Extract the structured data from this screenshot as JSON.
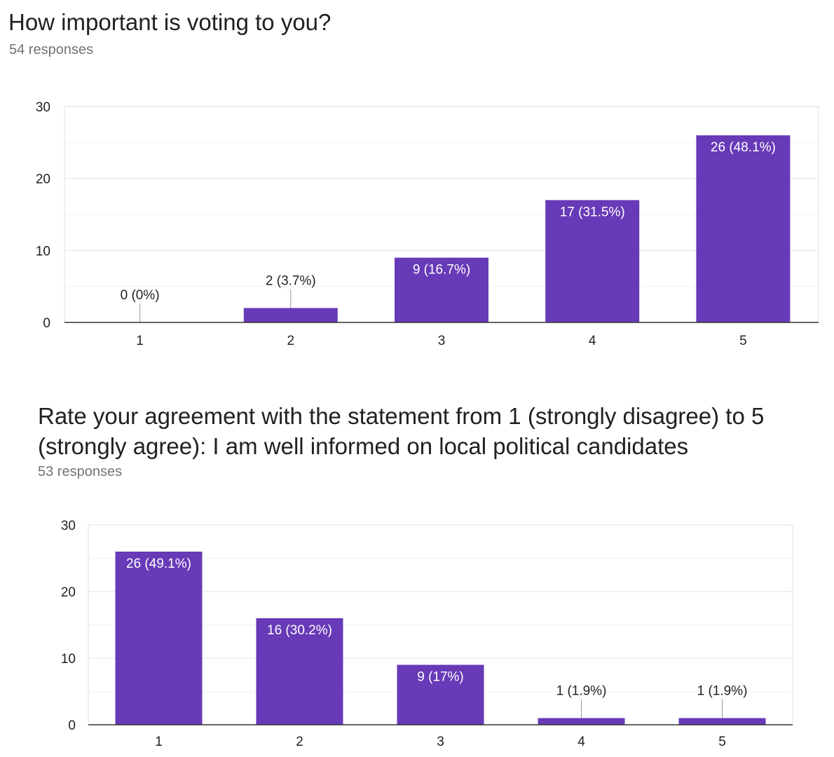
{
  "questions": [
    {
      "title": "How important is voting to you?",
      "responses": "54 responses"
    },
    {
      "title": "Rate your agreement with the statement from 1 (strongly disagree) to 5 (strongly agree): I am well informed on local political candidates",
      "responses": "53 responses"
    }
  ],
  "colors": {
    "bar": "#673ab7",
    "grid": "#e0e0e0",
    "axis": "#333333",
    "label_inside": "#ffffff",
    "label_outside": "#222222",
    "tick": "#222222"
  },
  "chart_data": [
    {
      "type": "bar",
      "categories": [
        "1",
        "2",
        "3",
        "4",
        "5"
      ],
      "values": [
        0,
        2,
        9,
        17,
        26
      ],
      "labels": [
        "0 (0%)",
        "2 (3.7%)",
        "9 (16.7%)",
        "17 (31.5%)",
        "26 (48.1%)"
      ],
      "yticks": [
        "0",
        "10",
        "20",
        "30"
      ],
      "ylim": [
        0,
        30
      ],
      "grid": true
    },
    {
      "type": "bar",
      "categories": [
        "1",
        "2",
        "3",
        "4",
        "5"
      ],
      "values": [
        26,
        16,
        9,
        1,
        1
      ],
      "labels": [
        "26 (49.1%)",
        "16 (30.2%)",
        "9 (17%)",
        "1 (1.9%)",
        "1 (1.9%)"
      ],
      "yticks": [
        "0",
        "10",
        "20",
        "30"
      ],
      "ylim": [
        0,
        30
      ],
      "grid": true
    }
  ]
}
